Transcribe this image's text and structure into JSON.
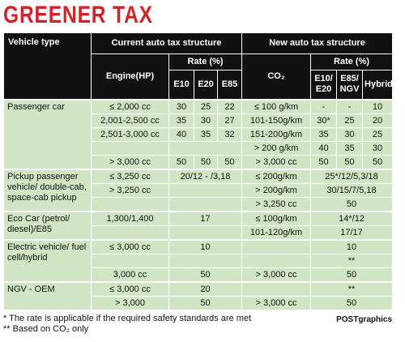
{
  "title": "GREENER TAX",
  "header": {
    "vehicle_type": "Vehicle type",
    "current": "Current auto tax structure",
    "new": "New auto tax structure",
    "rate_current": "Rate (%)",
    "rate_new": "Rate (%)",
    "engine": "Engine(HP)",
    "co2": "CO₂",
    "e10": "E10",
    "e20": "E20",
    "e85": "E85",
    "e10_e20": "E10/\nE20",
    "e85_ngv": "E85/\nNGV",
    "hybrid": "Hybrid"
  },
  "groups": [
    {
      "label": "Passenger car",
      "rows": [
        [
          "≤ 2,000 cc",
          30,
          25,
          22,
          "≤ 100 g/km",
          "-",
          "-",
          10
        ],
        [
          "2,001-2,500 cc",
          35,
          30,
          27,
          "101-150g/km",
          "30*",
          25,
          20
        ],
        [
          "2,501-3,000 cc",
          40,
          35,
          32,
          "151-200g/km",
          35,
          30,
          25
        ],
        [
          "> 200 g/km",
          40,
          35,
          30
        ],
        [
          "> 3,000 cc",
          50,
          50,
          50,
          "> 3,000 cc",
          50,
          50,
          50
        ]
      ]
    },
    {
      "label": "Pickup passenger vehicle/ double-cab, space-cab pickup",
      "rows": [
        [
          "≤ 3,250 cc",
          "20/12 - /3,18",
          "≤ 200g/km",
          "25*/12/5,3/18"
        ],
        [
          "> 3,250 cc",
          "> 200g/km",
          "30/15/7/5,18"
        ],
        [
          "> 3,250 cc",
          50
        ]
      ]
    },
    {
      "label": "Eco Car (petrol/ diesel)/E85",
      "rows": [
        [
          "1,300/1,400",
          17,
          "≤ 100g/km",
          "14*/12"
        ],
        [
          "101-120g/km",
          "17/17"
        ]
      ]
    },
    {
      "label": "Electric vehicle/ fuel cell/hybrid",
      "rows": [
        [
          "≤ 3,000 cc",
          10,
          10
        ],
        [
          "**"
        ],
        [
          "3,000 cc",
          50,
          "> 3,000 cc",
          50
        ]
      ]
    },
    {
      "label": "NGV - OEM",
      "rows": [
        [
          "≤ 3,000 cc",
          20,
          "**"
        ],
        [
          "> 3,000",
          50,
          "> 3,000 cc",
          50
        ]
      ]
    }
  ],
  "footnotes": [
    "* The rate is applicable if the required safety standards are met",
    "** Based on CO₂ only"
  ],
  "credit": "POSTgraphics"
}
